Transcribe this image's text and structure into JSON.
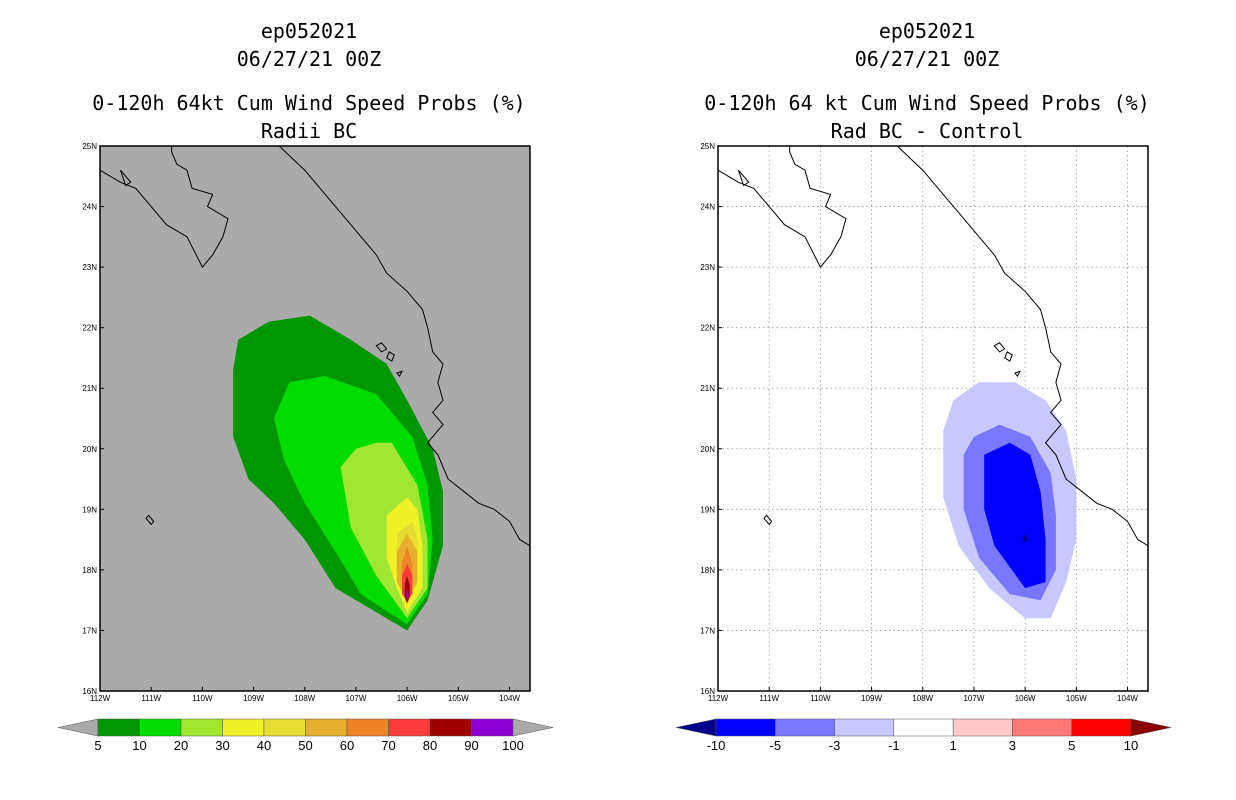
{
  "chart_data": [
    {
      "type": "heatmap",
      "title_lines": [
        "ep052021",
        "06/27/21 00Z",
        "0-120h 64kt Cum Wind Speed Probs (%)",
        "Radii BC"
      ],
      "lon_ticks": [
        "112W",
        "111W",
        "110W",
        "109W",
        "108W",
        "107W",
        "106W",
        "105W",
        "104W"
      ],
      "lat_ticks": [
        "16N",
        "17N",
        "18N",
        "19N",
        "20N",
        "21N",
        "22N",
        "23N",
        "24N",
        "25N"
      ],
      "lon_range": [
        -112,
        -103.6
      ],
      "lat_range": [
        16,
        25
      ],
      "background_color": "#aaaaaa",
      "gridlines": false,
      "colorbar": {
        "labels": [
          "5",
          "10",
          "20",
          "30",
          "40",
          "50",
          "60",
          "70",
          "80",
          "90",
          "100"
        ],
        "colors": [
          "#009600",
          "#00dc00",
          "#a0e632",
          "#f0f028",
          "#e6dc32",
          "#e6af2d",
          "#f08228",
          "#fa3c3c",
          "#a00000",
          "#8c00d2"
        ],
        "under_color": "#aaaaaa",
        "over_color": "#aaaaaa"
      },
      "contours": [
        {
          "level": 5,
          "color": "#009600",
          "polygon": [
            [
              -109.4,
              21.3
            ],
            [
              -109.4,
              20.8
            ],
            [
              -109.4,
              20.2
            ],
            [
              -109.1,
              19.5
            ],
            [
              -108.6,
              19.1
            ],
            [
              -108.0,
              18.5
            ],
            [
              -107.4,
              17.7
            ],
            [
              -106.8,
              17.4
            ],
            [
              -106.0,
              17.0
            ],
            [
              -105.6,
              17.5
            ],
            [
              -105.3,
              18.4
            ],
            [
              -105.3,
              19.3
            ],
            [
              -105.5,
              20.0
            ],
            [
              -106.0,
              20.8
            ],
            [
              -106.4,
              21.4
            ],
            [
              -107.1,
              21.8
            ],
            [
              -107.9,
              22.2
            ],
            [
              -108.7,
              22.1
            ],
            [
              -109.3,
              21.8
            ]
          ]
        },
        {
          "level": 10,
          "color": "#00dc00",
          "polygon": [
            [
              -108.6,
              20.5
            ],
            [
              -108.4,
              19.8
            ],
            [
              -108.0,
              19.1
            ],
            [
              -107.4,
              18.3
            ],
            [
              -106.9,
              17.6
            ],
            [
              -106.0,
              17.1
            ],
            [
              -105.6,
              17.6
            ],
            [
              -105.5,
              18.5
            ],
            [
              -105.6,
              19.4
            ],
            [
              -105.9,
              20.2
            ],
            [
              -106.6,
              20.9
            ],
            [
              -107.6,
              21.2
            ],
            [
              -108.3,
              21.1
            ]
          ]
        },
        {
          "level": 20,
          "color": "#a0e632",
          "polygon": [
            [
              -107.3,
              19.7
            ],
            [
              -107.1,
              18.7
            ],
            [
              -106.6,
              17.9
            ],
            [
              -106.0,
              17.2
            ],
            [
              -105.6,
              17.7
            ],
            [
              -105.6,
              18.5
            ],
            [
              -105.8,
              19.4
            ],
            [
              -106.3,
              20.1
            ],
            [
              -106.6,
              20.1
            ],
            [
              -107.0,
              20.0
            ]
          ]
        },
        {
          "level": 30,
          "color": "#f0f028",
          "polygon": [
            [
              -106.4,
              18.9
            ],
            [
              -106.4,
              18.2
            ],
            [
              -106.2,
              17.7
            ],
            [
              -106.0,
              17.3
            ],
            [
              -105.7,
              17.7
            ],
            [
              -105.7,
              18.4
            ],
            [
              -105.8,
              19.0
            ],
            [
              -106.0,
              19.2
            ]
          ]
        },
        {
          "level": 40,
          "color": "#e6dc32",
          "polygon": [
            [
              -106.2,
              18.6
            ],
            [
              -106.2,
              18.0
            ],
            [
              -106.0,
              17.4
            ],
            [
              -105.8,
              17.8
            ],
            [
              -105.8,
              18.5
            ],
            [
              -105.9,
              18.8
            ]
          ]
        },
        {
          "level": 50,
          "color": "#e6af2d",
          "polygon": [
            [
              -106.2,
              18.3
            ],
            [
              -106.2,
              17.8
            ],
            [
              -106.0,
              17.5
            ],
            [
              -105.8,
              17.8
            ],
            [
              -105.8,
              18.3
            ],
            [
              -106.0,
              18.6
            ]
          ]
        },
        {
          "level": 60,
          "color": "#f08228",
          "polygon": [
            [
              -106.1,
              18.1
            ],
            [
              -106.1,
              17.7
            ],
            [
              -106.0,
              17.5
            ],
            [
              -105.9,
              17.7
            ],
            [
              -105.9,
              18.1
            ],
            [
              -106.0,
              18.4
            ]
          ]
        },
        {
          "level": 70,
          "color": "#fa3c3c",
          "polygon": [
            [
              -106.1,
              17.9
            ],
            [
              -106.1,
              17.6
            ],
            [
              -106.0,
              17.5
            ],
            [
              -105.9,
              17.6
            ],
            [
              -105.9,
              17.9
            ],
            [
              -106.0,
              18.1
            ]
          ]
        },
        {
          "level": 80,
          "color": "#a00000",
          "polygon": [
            [
              -106.05,
              17.75
            ],
            [
              -106.05,
              17.55
            ],
            [
              -106.0,
              17.45
            ],
            [
              -105.95,
              17.55
            ],
            [
              -105.95,
              17.75
            ],
            [
              -106.0,
              17.9
            ]
          ]
        },
        {
          "level": 90,
          "color": "#8c00d2",
          "polygon": [
            [
              -106.0,
              17.7
            ],
            [
              -106.03,
              17.6
            ],
            [
              -106.0,
              17.5
            ],
            [
              -105.97,
              17.6
            ]
          ]
        }
      ]
    },
    {
      "type": "heatmap",
      "title_lines": [
        "ep052021",
        "06/27/21 00Z",
        "0-120h 64 kt Cum Wind Speed Probs (%)",
        "Rad BC - Control"
      ],
      "lon_ticks": [
        "112W",
        "111W",
        "110W",
        "109W",
        "108W",
        "107W",
        "106W",
        "105W",
        "104W"
      ],
      "lat_ticks": [
        "16N",
        "17N",
        "18N",
        "19N",
        "20N",
        "21N",
        "22N",
        "23N",
        "24N",
        "25N"
      ],
      "lon_range": [
        -112,
        -103.6
      ],
      "lat_range": [
        16,
        25
      ],
      "background_color": "#ffffff",
      "gridlines": true,
      "colorbar": {
        "labels": [
          "-10",
          "-5",
          "-3",
          "-1",
          "1",
          "3",
          "5",
          "10"
        ],
        "colors": [
          "#0000ff",
          "#7878ff",
          "#c8c8ff",
          "#ffffff",
          "#ffc8c8",
          "#ff7878",
          "#ff0000"
        ],
        "under_color": "#00008c",
        "over_color": "#8c0000"
      },
      "contours": [
        {
          "level": -1,
          "color": "#c8c8ff",
          "polygon": [
            [
              -107.6,
              20.3
            ],
            [
              -107.6,
              19.2
            ],
            [
              -107.3,
              18.4
            ],
            [
              -106.7,
              17.7
            ],
            [
              -106.0,
              17.2
            ],
            [
              -105.5,
              17.2
            ],
            [
              -105.2,
              17.8
            ],
            [
              -105.0,
              18.5
            ],
            [
              -105.0,
              19.5
            ],
            [
              -105.2,
              20.3
            ],
            [
              -105.6,
              20.8
            ],
            [
              -106.2,
              21.1
            ],
            [
              -106.9,
              21.1
            ],
            [
              -107.4,
              20.8
            ]
          ]
        },
        {
          "level": -3,
          "color": "#7878ff",
          "polygon": [
            [
              -107.2,
              19.9
            ],
            [
              -107.2,
              19.0
            ],
            [
              -106.9,
              18.2
            ],
            [
              -106.3,
              17.6
            ],
            [
              -105.7,
              17.5
            ],
            [
              -105.4,
              18.0
            ],
            [
              -105.4,
              18.9
            ],
            [
              -105.5,
              19.6
            ],
            [
              -105.9,
              20.2
            ],
            [
              -106.5,
              20.4
            ],
            [
              -107.0,
              20.2
            ]
          ]
        },
        {
          "level": -5,
          "color": "#0000ff",
          "polygon": [
            [
              -106.8,
              19.9
            ],
            [
              -106.8,
              19.0
            ],
            [
              -106.6,
              18.4
            ],
            [
              -106.0,
              17.7
            ],
            [
              -105.6,
              17.8
            ],
            [
              -105.6,
              18.5
            ],
            [
              -105.7,
              19.3
            ],
            [
              -105.9,
              19.9
            ],
            [
              -106.3,
              20.1
            ]
          ]
        },
        {
          "level": -10,
          "color": "#00008c",
          "polygon": [
            [
              -106.0,
              18.6
            ],
            [
              -106.05,
              18.5
            ],
            [
              -106.0,
              18.45
            ],
            [
              -105.95,
              18.5
            ]
          ]
        }
      ]
    }
  ]
}
